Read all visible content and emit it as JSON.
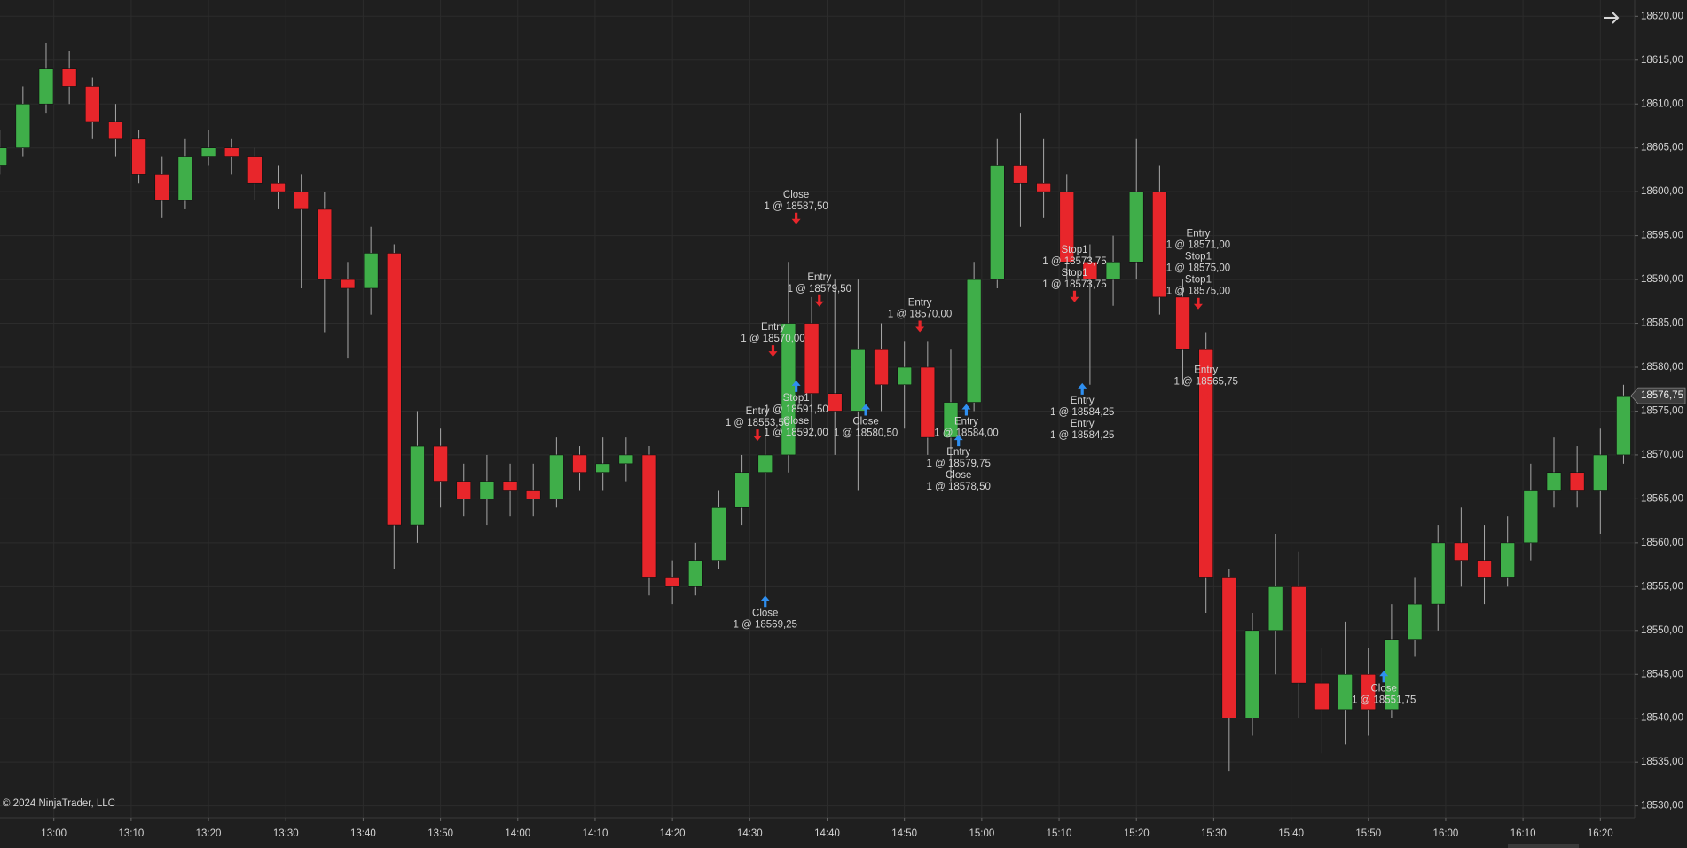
{
  "chart_data": {
    "type": "candlestick",
    "x": [
      "12:53",
      "12:56",
      "12:59",
      "13:02",
      "13:05",
      "13:08",
      "13:11",
      "13:14",
      "13:17",
      "13:20",
      "13:23",
      "13:26",
      "13:29",
      "13:32",
      "13:35",
      "13:38",
      "13:41",
      "13:44",
      "13:47",
      "13:50",
      "13:53",
      "13:56",
      "13:59",
      "14:02",
      "14:05",
      "14:08",
      "14:11",
      "14:14",
      "14:17",
      "14:20",
      "14:23",
      "14:26",
      "14:29",
      "14:32",
      "14:35",
      "14:38",
      "14:41",
      "14:44",
      "14:47",
      "14:50",
      "14:53",
      "14:56",
      "14:59",
      "15:02",
      "15:05",
      "15:08",
      "15:11",
      "15:14",
      "15:17",
      "15:20",
      "15:23",
      "15:26",
      "15:29",
      "15:32",
      "15:35",
      "15:38",
      "15:41",
      "15:44",
      "15:47",
      "15:50",
      "15:53",
      "15:56",
      "15:59",
      "16:02",
      "16:05",
      "16:08",
      "16:11",
      "16:14",
      "16:17",
      "16:20",
      "16:23"
    ],
    "open": [
      18603,
      18605,
      18610,
      18614,
      18612,
      18608,
      18606,
      18602,
      18599,
      18604,
      18605,
      18604,
      18601,
      18600,
      18598,
      18590,
      18589,
      18593,
      18562,
      18571,
      18567,
      18565,
      18567,
      18566,
      18565,
      18570,
      18568,
      18569,
      18570,
      18556,
      18555,
      18558,
      18564,
      18568,
      18570,
      18585,
      18577,
      18575,
      18582,
      18578,
      18580,
      18572,
      18576,
      18590,
      18603,
      18601,
      18600,
      18592,
      18590,
      18592,
      18600,
      18588,
      18582,
      18556,
      18540,
      18550,
      18555,
      18544,
      18541,
      18545,
      18541,
      18549,
      18553,
      18560,
      18558,
      18556,
      18560,
      18566,
      18568,
      18566,
      18570
    ],
    "high": [
      18607,
      18612,
      18617,
      18616,
      18613,
      18610,
      18607,
      18604,
      18606,
      18607,
      18606,
      18605,
      18603,
      18602,
      18600,
      18592,
      18596,
      18594,
      18575,
      18573,
      18569,
      18570,
      18569,
      18569,
      18572,
      18571,
      18572,
      18572,
      18571,
      18558,
      18560,
      18566,
      18570,
      18574,
      18592,
      18588,
      18590,
      18590,
      18585,
      18583,
      18583,
      18582,
      18592,
      18606,
      18609,
      18606,
      18602,
      18594,
      18595,
      18606,
      18603,
      18590,
      18584,
      18557,
      18552,
      18561,
      18559,
      18548,
      18551,
      18548,
      18553,
      18556,
      18562,
      18564,
      18562,
      18563,
      18569,
      18572,
      18571,
      18573,
      18578
    ],
    "low": [
      18602,
      18604,
      18609,
      18610,
      18606,
      18604,
      18601,
      18597,
      18598,
      18603,
      18602,
      18599,
      18598,
      18589,
      18584,
      18581,
      18586,
      18557,
      18560,
      18564,
      18563,
      18562,
      18563,
      18563,
      18564,
      18566,
      18566,
      18567,
      18554,
      18553,
      18554,
      18557,
      18562,
      18553,
      18568,
      18572,
      18570,
      18566,
      18575,
      18573,
      18570,
      18567,
      18575,
      18589,
      18596,
      18597,
      18590,
      18578,
      18587,
      18590,
      18586,
      18578,
      18552,
      18534,
      18538,
      18545,
      18540,
      18536,
      18537,
      18538,
      18540,
      18547,
      18550,
      18555,
      18553,
      18555,
      18558,
      18564,
      18564,
      18561,
      18569
    ],
    "close": [
      18605,
      18610,
      18614,
      18612,
      18608,
      18606,
      18602,
      18599,
      18604,
      18605,
      18604,
      18601,
      18600,
      18598,
      18590,
      18589,
      18593,
      18562,
      18571,
      18567,
      18565,
      18567,
      18566,
      18565,
      18570,
      18568,
      18569,
      18570,
      18556,
      18555,
      18558,
      18564,
      18568,
      18570,
      18585,
      18577,
      18575,
      18582,
      18578,
      18580,
      18572,
      18576,
      18590,
      18603,
      18601,
      18600,
      18592,
      18590,
      18592,
      18600,
      18588,
      18582,
      18556,
      18540,
      18550,
      18555,
      18544,
      18541,
      18545,
      18541,
      18549,
      18553,
      18560,
      18558,
      18556,
      18560,
      18566,
      18568,
      18566,
      18570,
      18576.75
    ],
    "up_color": "#3fae49",
    "down_color": "#e8262b",
    "wick_color": "#a8a8a8",
    "ylim": [
      18528.65,
      18621.85
    ],
    "yticks": [
      {
        "value": 18530,
        "label": "18530,00"
      },
      {
        "value": 18535,
        "label": "18535,00"
      },
      {
        "value": 18540,
        "label": "18540,00"
      },
      {
        "value": 18545,
        "label": "18545,00"
      },
      {
        "value": 18550,
        "label": "18550,00"
      },
      {
        "value": 18555,
        "label": "18555,00"
      },
      {
        "value": 18560,
        "label": "18560,00"
      },
      {
        "value": 18565,
        "label": "18565,00"
      },
      {
        "value": 18570,
        "label": "18570,00"
      },
      {
        "value": 18575,
        "label": "18575,00"
      },
      {
        "value": 18580,
        "label": "18580,00"
      },
      {
        "value": 18585,
        "label": "18585,00"
      },
      {
        "value": 18590,
        "label": "18590,00"
      },
      {
        "value": 18595,
        "label": "18595,00"
      },
      {
        "value": 18600,
        "label": "18600,00"
      },
      {
        "value": 18605,
        "label": "18605,00"
      },
      {
        "value": 18610,
        "label": "18610,00"
      },
      {
        "value": 18615,
        "label": "18615,00"
      },
      {
        "value": 18620,
        "label": "18620,00"
      }
    ],
    "xticks": [
      "13:00",
      "13:10",
      "13:20",
      "13:30",
      "13:40",
      "13:50",
      "14:00",
      "14:10",
      "14:20",
      "14:30",
      "14:40",
      "14:50",
      "15:00",
      "15:10",
      "15:20",
      "15:30",
      "15:40",
      "15:50",
      "16:00",
      "16:10",
      "16:20"
    ],
    "grid": true,
    "last_price": {
      "value": 18576.75,
      "label": "18576,75"
    },
    "copyright": "© 2024 NinjaTrader, LLC",
    "annotations": [
      {
        "time": "14:36",
        "price": 18596.3,
        "direction": "down",
        "color": "#e8262b",
        "lines": [
          "Close",
          "1 @ 18587,50"
        ]
      },
      {
        "time": "14:39",
        "price": 18586.9,
        "direction": "down",
        "color": "#e8262b",
        "lines": [
          "Entry",
          "1 @ 18579,50"
        ]
      },
      {
        "time": "14:33",
        "price": 18581.2,
        "direction": "down",
        "color": "#e8262b",
        "lines": [
          "Entry",
          "1 @ 18570,00"
        ]
      },
      {
        "time": "14:36",
        "price": 18578.5,
        "direction": "up",
        "color": "#2f8ff0",
        "lines": [
          "Stop1",
          "1 @ 18591,50",
          "Close",
          "1 @ 18592,00"
        ]
      },
      {
        "time": "14:31",
        "price": 18571.6,
        "direction": "down",
        "color": "#e8262b",
        "lines": [
          "Entry",
          "1 @ 18553,50"
        ]
      },
      {
        "time": "14:32",
        "price": 18554,
        "direction": "up",
        "color": "#2f8ff0",
        "lines": [
          "Close",
          "1 @ 18569,25"
        ]
      },
      {
        "time": "14:45",
        "price": 18575.8,
        "direction": "up",
        "color": "#2f8ff0",
        "lines": [
          "Close",
          "1 @ 18580,50"
        ]
      },
      {
        "time": "14:52",
        "price": 18584,
        "direction": "down",
        "color": "#e8262b",
        "lines": [
          "Entry",
          "1 @ 18570,00"
        ]
      },
      {
        "time": "14:58",
        "price": 18575.8,
        "direction": "up",
        "color": "#2f8ff0",
        "lines": [
          "Entry",
          "1 @ 18584,00"
        ]
      },
      {
        "time": "14:57",
        "price": 18572.3,
        "direction": "up",
        "color": "#2f8ff0",
        "lines": [
          "Entry",
          "1 @ 18579,75",
          "Close",
          "1 @ 18578,50"
        ]
      },
      {
        "time": "15:12",
        "price": 18587.4,
        "direction": "down",
        "color": "#e8262b",
        "lines": [
          "Stop1",
          "1 @ 18573,75",
          "Stop1",
          "1 @ 18573,75"
        ]
      },
      {
        "time": "15:13",
        "price": 18578.2,
        "direction": "up",
        "color": "#2f8ff0",
        "lines": [
          "Entry",
          "1 @ 18584,25",
          "Entry",
          "1 @ 18584,25"
        ]
      },
      {
        "time": "15:28",
        "price": 18586.6,
        "direction": "down",
        "color": "#e8262b",
        "lines": [
          "Entry",
          "1 @ 18571,00",
          "Stop1",
          "1 @ 18575,00",
          "Stop1",
          "1 @ 18575,00"
        ]
      },
      {
        "time": "15:29",
        "price": 18576.3,
        "direction": "down",
        "color": "#e8262b",
        "lines": [
          "Entry",
          "1 @ 18565,75"
        ]
      },
      {
        "time": "15:52",
        "price": 18545.4,
        "direction": "up",
        "color": "#2f8ff0",
        "lines": [
          "Close",
          "1 @ 18551,75"
        ]
      }
    ]
  }
}
